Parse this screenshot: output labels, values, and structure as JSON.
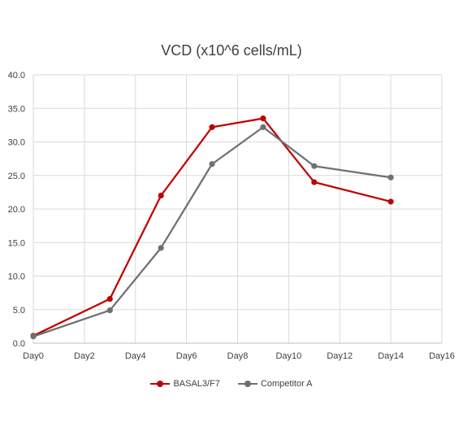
{
  "chart_data": {
    "type": "line",
    "title": "VCD (x10^6 cells/mL)",
    "xlabel": "",
    "ylabel": "",
    "x_ticks": [
      "Day0",
      "Day2",
      "Day4",
      "Day6",
      "Day8",
      "Day10",
      "Day12",
      "Day14",
      "Day16"
    ],
    "xlim": [
      0,
      16
    ],
    "y_ticks": [
      "0.0",
      "5.0",
      "10.0",
      "15.0",
      "20.0",
      "25.0",
      "30.0",
      "35.0",
      "40.0"
    ],
    "ylim": [
      0,
      40
    ],
    "grid": true,
    "legend_position": "bottom",
    "series": [
      {
        "name": "BASAL3/F7",
        "color": "#c00000",
        "x": [
          0,
          3,
          5,
          7,
          9,
          11,
          14
        ],
        "y": [
          1.1,
          6.6,
          22.0,
          32.2,
          33.5,
          24.0,
          21.1
        ]
      },
      {
        "name": "Competitor A",
        "color": "#707070",
        "x": [
          0,
          3,
          5,
          7,
          9,
          11,
          14
        ],
        "y": [
          1.0,
          4.9,
          14.2,
          26.7,
          32.2,
          26.4,
          24.7
        ]
      }
    ]
  }
}
